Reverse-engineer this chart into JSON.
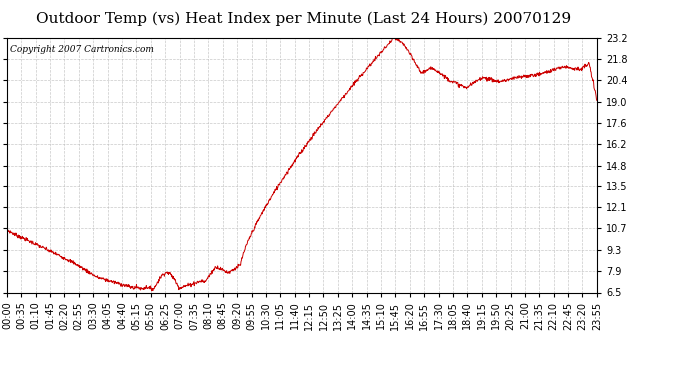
{
  "title": "Outdoor Temp (vs) Heat Index per Minute (Last 24 Hours) 20070129",
  "copyright_text": "Copyright 2007 Cartronics.com",
  "line_color": "#cc0000",
  "background_color": "#ffffff",
  "grid_color": "#bbbbbb",
  "yticks": [
    6.5,
    7.9,
    9.3,
    10.7,
    12.1,
    13.5,
    14.8,
    16.2,
    17.6,
    19.0,
    20.4,
    21.8,
    23.2
  ],
  "ylim": [
    6.5,
    23.2
  ],
  "xtick_labels": [
    "00:00",
    "00:35",
    "01:10",
    "01:45",
    "02:20",
    "02:55",
    "03:30",
    "04:05",
    "04:40",
    "05:15",
    "05:50",
    "06:25",
    "07:00",
    "07:35",
    "08:10",
    "08:45",
    "09:20",
    "09:55",
    "10:30",
    "11:05",
    "11:40",
    "12:15",
    "12:50",
    "13:25",
    "14:00",
    "14:35",
    "15:10",
    "15:45",
    "16:20",
    "16:55",
    "17:30",
    "18:05",
    "18:40",
    "19:15",
    "19:50",
    "20:25",
    "21:00",
    "21:35",
    "22:10",
    "22:45",
    "23:20",
    "23:55"
  ],
  "title_fontsize": 11,
  "copyright_fontsize": 6.5,
  "tick_fontsize": 7
}
